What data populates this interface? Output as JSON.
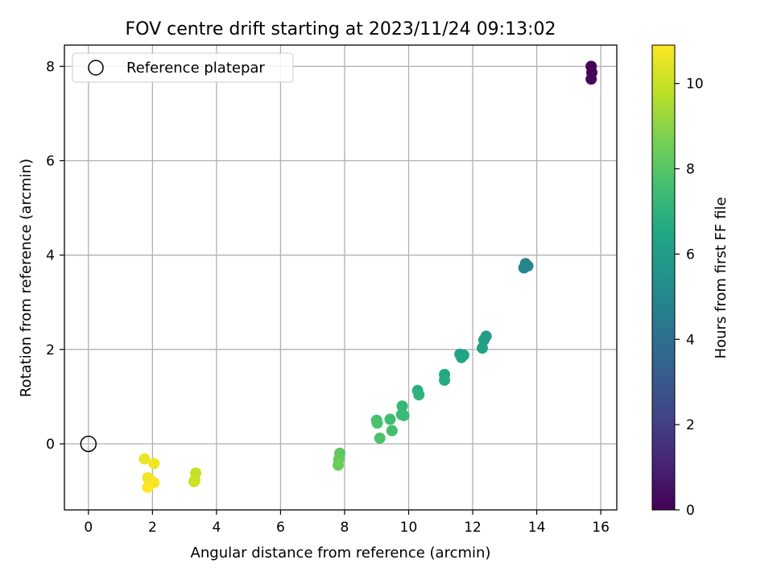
{
  "chart_data": {
    "type": "scatter",
    "title": "FOV centre drift starting at 2023/11/24 09:13:02",
    "xlabel": "Angular distance from reference (arcmin)",
    "ylabel": "Rotation from reference (arcmin)",
    "xlim": [
      -0.75,
      16.5
    ],
    "ylim": [
      -1.4,
      8.45
    ],
    "xticks": [
      0,
      2,
      4,
      6,
      8,
      10,
      12,
      14,
      16
    ],
    "yticks": [
      0,
      2,
      4,
      6,
      8
    ],
    "grid": true,
    "legend": {
      "placement": "top-left",
      "entries": [
        "Reference platepar"
      ]
    },
    "reference_point": {
      "x": 0,
      "y": 0,
      "label": "Reference platepar"
    },
    "colorbar": {
      "label": "Hours from first FF file",
      "colormap": "viridis",
      "range": [
        0,
        10.9
      ],
      "ticks": [
        0,
        2,
        4,
        6,
        8,
        10
      ]
    },
    "series": [
      {
        "points": [
          {
            "x": 15.7,
            "y": 8.0,
            "hours": 0.0
          },
          {
            "x": 15.72,
            "y": 7.87,
            "hours": 0.1
          },
          {
            "x": 15.7,
            "y": 7.73,
            "hours": 0.2
          },
          {
            "x": 13.65,
            "y": 3.82,
            "hours": 4.8
          },
          {
            "x": 13.72,
            "y": 3.77,
            "hours": 4.9
          },
          {
            "x": 13.6,
            "y": 3.73,
            "hours": 5.0
          },
          {
            "x": 12.42,
            "y": 2.28,
            "hours": 6.0
          },
          {
            "x": 12.35,
            "y": 2.2,
            "hours": 6.1
          },
          {
            "x": 12.3,
            "y": 2.03,
            "hours": 6.2
          },
          {
            "x": 11.6,
            "y": 1.9,
            "hours": 6.3
          },
          {
            "x": 11.72,
            "y": 1.88,
            "hours": 6.35
          },
          {
            "x": 11.65,
            "y": 1.83,
            "hours": 6.4
          },
          {
            "x": 11.12,
            "y": 1.47,
            "hours": 6.6
          },
          {
            "x": 11.12,
            "y": 1.35,
            "hours": 6.7
          },
          {
            "x": 10.28,
            "y": 1.13,
            "hours": 6.9
          },
          {
            "x": 10.32,
            "y": 1.04,
            "hours": 7.0
          },
          {
            "x": 9.8,
            "y": 0.8,
            "hours": 7.2
          },
          {
            "x": 9.78,
            "y": 0.62,
            "hours": 7.3
          },
          {
            "x": 9.85,
            "y": 0.6,
            "hours": 7.35
          },
          {
            "x": 9.42,
            "y": 0.52,
            "hours": 7.5
          },
          {
            "x": 9.48,
            "y": 0.28,
            "hours": 7.6
          },
          {
            "x": 9.0,
            "y": 0.5,
            "hours": 7.7
          },
          {
            "x": 9.02,
            "y": 0.44,
            "hours": 7.75
          },
          {
            "x": 9.1,
            "y": 0.12,
            "hours": 7.8
          },
          {
            "x": 7.85,
            "y": -0.2,
            "hours": 8.2
          },
          {
            "x": 7.82,
            "y": -0.33,
            "hours": 8.3
          },
          {
            "x": 7.8,
            "y": -0.45,
            "hours": 8.4
          },
          {
            "x": 3.35,
            "y": -0.62,
            "hours": 9.9
          },
          {
            "x": 3.3,
            "y": -0.8,
            "hours": 10.0
          },
          {
            "x": 3.32,
            "y": -0.77,
            "hours": 10.05
          },
          {
            "x": 1.75,
            "y": -0.32,
            "hours": 10.6
          },
          {
            "x": 2.05,
            "y": -0.42,
            "hours": 10.65
          },
          {
            "x": 1.85,
            "y": -0.72,
            "hours": 10.7
          },
          {
            "x": 1.95,
            "y": -0.78,
            "hours": 10.75
          },
          {
            "x": 2.05,
            "y": -0.82,
            "hours": 10.8
          },
          {
            "x": 1.85,
            "y": -0.92,
            "hours": 10.9
          }
        ]
      }
    ]
  }
}
